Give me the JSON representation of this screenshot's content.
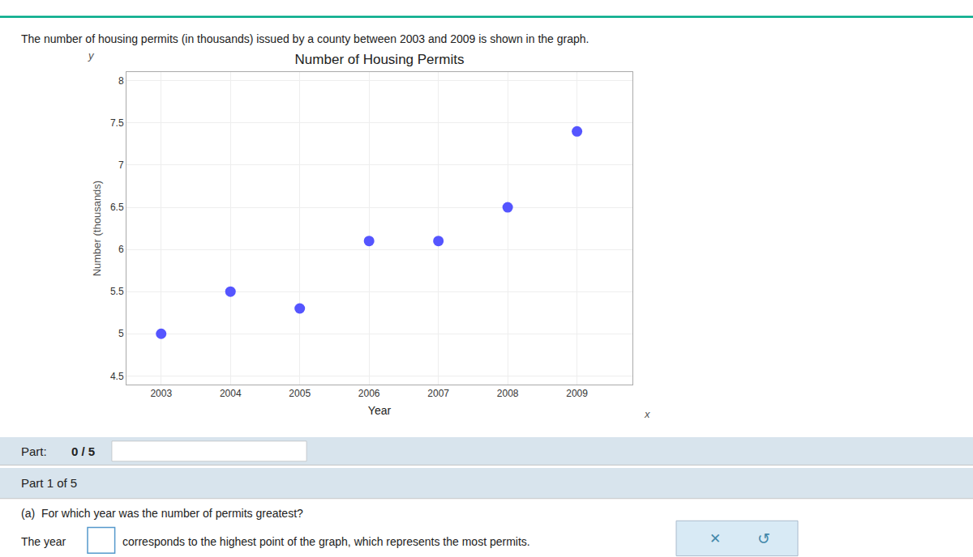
{
  "chart_data": {
    "type": "scatter",
    "title": "Number of Housing Permits",
    "xlabel": "Year",
    "ylabel": "Number (thousands)",
    "x": [
      2003,
      2004,
      2005,
      2006,
      2007,
      2008,
      2009
    ],
    "values": [
      5.0,
      5.5,
      5.3,
      6.1,
      6.1,
      6.5,
      7.4
    ],
    "color": "#5555ff",
    "xlim": [
      2002.5,
      2009.8
    ],
    "ylim": [
      4.4,
      8.1
    ],
    "xticks": [
      2003,
      2004,
      2005,
      2006,
      2007,
      2008,
      2009
    ],
    "yticks": [
      4.5,
      5,
      5.5,
      6,
      6.5,
      7,
      7.5,
      8
    ],
    "grid": true,
    "annotations": [
      "The number of housing permits (in thousands) issued by a county between 2003 and 2009 is shown in the graph.",
      "y",
      "x",
      "Part: ",
      "0 / 5",
      "Part 1 of 5",
      "(a)  For which year was the number of permits greatest?",
      "The year",
      "corresponds to the highest point of the graph, which represents the most permits.",
      "✕",
      "↺"
    ]
  }
}
